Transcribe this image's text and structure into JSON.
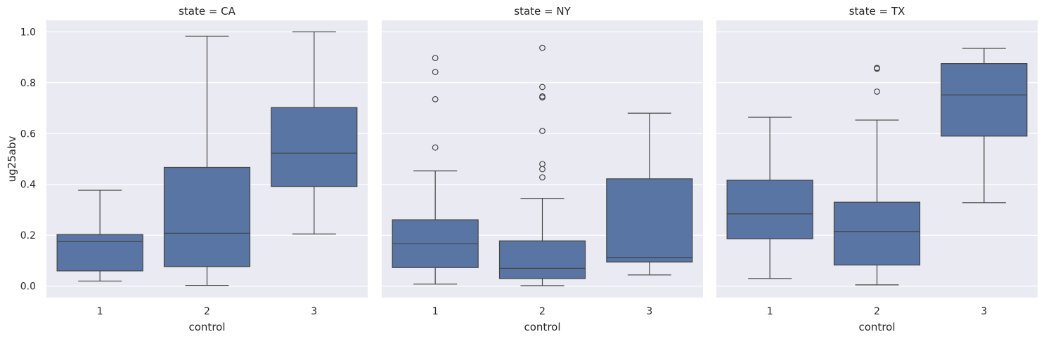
{
  "chart_data": {
    "type": "box",
    "x_categories": [
      "1",
      "2",
      "3"
    ],
    "ylim": [
      -0.045,
      1.045
    ],
    "y_ticks": [
      "0.0",
      "0.2",
      "0.4",
      "0.6",
      "0.8",
      "1.0"
    ],
    "grid": true,
    "background": "#eaeaf2",
    "box_color": "#5875a4",
    "line_color": "#444444",
    "xlabel": "control",
    "ylabel": "ug25abv",
    "facets": [
      {
        "title": "state = CA",
        "boxes": [
          {
            "category": "1",
            "whisker_low": 0.02,
            "q1": 0.06,
            "median": 0.175,
            "q3": 0.203,
            "whisker_high": 0.377,
            "outliers": []
          },
          {
            "category": "2",
            "whisker_low": 0.003,
            "q1": 0.077,
            "median": 0.208,
            "q3": 0.467,
            "whisker_high": 0.983,
            "outliers": []
          },
          {
            "category": "3",
            "whisker_low": 0.205,
            "q1": 0.392,
            "median": 0.523,
            "q3": 0.702,
            "whisker_high": 1.0,
            "outliers": []
          }
        ]
      },
      {
        "title": "state = NY",
        "boxes": [
          {
            "category": "1",
            "whisker_low": 0.008,
            "q1": 0.073,
            "median": 0.167,
            "q3": 0.261,
            "whisker_high": 0.453,
            "outliers": [
              0.545,
              0.735,
              0.842,
              0.897
            ]
          },
          {
            "category": "2",
            "whisker_low": 0.002,
            "q1": 0.03,
            "median": 0.07,
            "q3": 0.178,
            "whisker_high": 0.345,
            "outliers": [
              0.428,
              0.46,
              0.48,
              0.61,
              0.742,
              0.746,
              0.783,
              0.937
            ]
          },
          {
            "category": "3",
            "whisker_low": 0.044,
            "q1": 0.095,
            "median": 0.113,
            "q3": 0.422,
            "whisker_high": 0.68,
            "outliers": []
          }
        ]
      },
      {
        "title": "state = TX",
        "boxes": [
          {
            "category": "1",
            "whisker_low": 0.03,
            "q1": 0.186,
            "median": 0.284,
            "q3": 0.417,
            "whisker_high": 0.664,
            "outliers": []
          },
          {
            "category": "2",
            "whisker_low": 0.005,
            "q1": 0.083,
            "median": 0.215,
            "q3": 0.33,
            "whisker_high": 0.653,
            "outliers": [
              0.765,
              0.855,
              0.858
            ]
          },
          {
            "category": "3",
            "whisker_low": 0.328,
            "q1": 0.59,
            "median": 0.752,
            "q3": 0.875,
            "whisker_high": 0.935,
            "outliers": []
          }
        ]
      }
    ]
  }
}
